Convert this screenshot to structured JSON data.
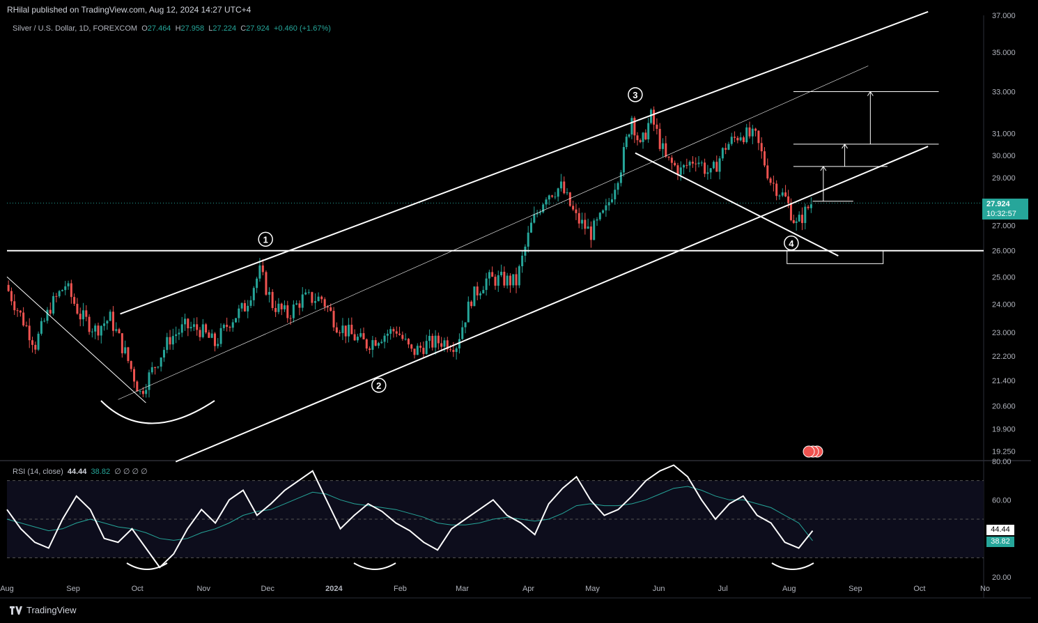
{
  "publisher": "RHilal published on TradingView.com, Aug 12, 2024 14:27 UTC+4",
  "legend": {
    "symbol": "Silver / U.S. Dollar, 1D, FOREXCOM",
    "o_label": "O",
    "o": "27.464",
    "h_label": "H",
    "h": "27.958",
    "l_label": "L",
    "l": "27.224",
    "c_label": "C",
    "c": "27.924",
    "change": "+0.460 (+1.67%)"
  },
  "price_badge": {
    "value": "27.924",
    "countdown": "10:32:57",
    "color": "#26a69a"
  },
  "rsi_legend": {
    "name": "RSI (14, close)",
    "value": "44.44",
    "ma": "38.82",
    "zeros": "∅ ∅ ∅ ∅"
  },
  "rsi_badges": {
    "rsi": "44.44",
    "ma": "38.82"
  },
  "brand": "TradingView",
  "colors": {
    "up": "#26a69a",
    "down": "#ef5350",
    "background": "#000000",
    "rsi_line": "#ffffff",
    "rsi_ma": "#26a69a"
  },
  "chart_data": [
    {
      "type": "candlestick",
      "title": "Silver / U.S. Dollar, 1D, FOREXCOM",
      "y_ticks": [
        "37.000",
        "35.000",
        "33.000",
        "31.000",
        "30.000",
        "29.000",
        "28.000",
        "27.000",
        "26.000",
        "25.000",
        "24.000",
        "23.000",
        "22.200",
        "21.400",
        "20.600",
        "19.900",
        "19.250"
      ],
      "x_ticks": [
        "Aug",
        "Sep",
        "Oct",
        "Nov",
        "Dec",
        "2024",
        "Feb",
        "Mar",
        "Apr",
        "May",
        "Jun",
        "Jul",
        "Aug",
        "Sep",
        "Oct",
        "No"
      ],
      "scale": "log",
      "ylim": [
        19.0,
        37.0
      ],
      "wave_labels": [
        "1",
        "2",
        "3",
        "4"
      ],
      "close_series": [
        [
          "2023-08-01",
          24.7
        ],
        [
          "2023-08-08",
          23.6
        ],
        [
          "2023-08-15",
          22.6
        ],
        [
          "2023-08-22",
          23.9
        ],
        [
          "2023-08-29",
          24.7
        ],
        [
          "2023-09-05",
          23.6
        ],
        [
          "2023-09-12",
          23.1
        ],
        [
          "2023-09-19",
          23.5
        ],
        [
          "2023-09-26",
          22.3
        ],
        [
          "2023-10-03",
          21.0
        ],
        [
          "2023-10-10",
          21.9
        ],
        [
          "2023-10-17",
          22.8
        ],
        [
          "2023-10-24",
          23.2
        ],
        [
          "2023-10-31",
          23.1
        ],
        [
          "2023-11-07",
          22.6
        ],
        [
          "2023-11-14",
          23.4
        ],
        [
          "2023-11-21",
          23.9
        ],
        [
          "2023-11-28",
          25.2
        ],
        [
          "2023-12-04",
          24.0
        ],
        [
          "2023-12-11",
          23.6
        ],
        [
          "2023-12-18",
          24.2
        ],
        [
          "2023-12-27",
          24.2
        ],
        [
          "2024-01-03",
          23.3
        ],
        [
          "2024-01-10",
          22.9
        ],
        [
          "2024-01-17",
          22.6
        ],
        [
          "2024-01-24",
          22.9
        ],
        [
          "2024-01-31",
          23.1
        ],
        [
          "2024-02-07",
          22.3
        ],
        [
          "2024-02-14",
          22.6
        ],
        [
          "2024-02-21",
          22.7
        ],
        [
          "2024-02-28",
          22.6
        ],
        [
          "2024-03-06",
          24.2
        ],
        [
          "2024-03-13",
          24.9
        ],
        [
          "2024-03-20",
          24.9
        ],
        [
          "2024-03-27",
          24.8
        ],
        [
          "2024-04-03",
          27.0
        ],
        [
          "2024-04-10",
          28.3
        ],
        [
          "2024-04-17",
          28.6
        ],
        [
          "2024-04-24",
          27.3
        ],
        [
          "2024-05-01",
          26.7
        ],
        [
          "2024-05-08",
          27.6
        ],
        [
          "2024-05-15",
          29.5
        ],
        [
          "2024-05-20",
          31.8
        ],
        [
          "2024-05-24",
          30.3
        ],
        [
          "2024-05-29",
          31.8
        ],
        [
          "2024-06-05",
          29.8
        ],
        [
          "2024-06-12",
          29.3
        ],
        [
          "2024-06-19",
          29.9
        ],
        [
          "2024-06-26",
          29.1
        ],
        [
          "2024-07-03",
          30.4
        ],
        [
          "2024-07-10",
          31.0
        ],
        [
          "2024-07-17",
          30.8
        ],
        [
          "2024-07-24",
          28.9
        ],
        [
          "2024-07-31",
          28.1
        ],
        [
          "2024-08-05",
          27.0
        ],
        [
          "2024-08-12",
          27.924
        ]
      ],
      "annotations": {
        "horizontal_level": 26.0,
        "target_levels": [
          28.0,
          29.5,
          30.5,
          33.0
        ],
        "support_zone": [
          25.5,
          26.0
        ]
      }
    },
    {
      "type": "line",
      "title": "RSI (14, close)",
      "y_ticks": [
        "80.00",
        "60.00",
        "20.00"
      ],
      "ylim": [
        20,
        80
      ],
      "bands": [
        30,
        70
      ],
      "series": [
        {
          "name": "RSI",
          "values": [
            55,
            45,
            38,
            35,
            50,
            62,
            55,
            40,
            38,
            45,
            35,
            25,
            32,
            45,
            55,
            48,
            60,
            65,
            52,
            58,
            65,
            70,
            75,
            60,
            45,
            52,
            58,
            54,
            48,
            44,
            38,
            34,
            45,
            50,
            55,
            60,
            52,
            48,
            42,
            58,
            66,
            72,
            60,
            52,
            55,
            62,
            70,
            75,
            78,
            72,
            60,
            50,
            58,
            62,
            52,
            48,
            38,
            35,
            44
          ]
        },
        {
          "name": "MA",
          "values": [
            50,
            48,
            46,
            44,
            45,
            48,
            50,
            48,
            46,
            45,
            43,
            40,
            39,
            40,
            43,
            45,
            48,
            52,
            54,
            55,
            58,
            61,
            64,
            63,
            60,
            58,
            57,
            56,
            55,
            53,
            51,
            48,
            47,
            47,
            48,
            50,
            51,
            50,
            49,
            50,
            53,
            57,
            58,
            57,
            57,
            58,
            60,
            63,
            66,
            67,
            65,
            62,
            60,
            60,
            58,
            56,
            52,
            48,
            38.82
          ]
        }
      ]
    }
  ]
}
